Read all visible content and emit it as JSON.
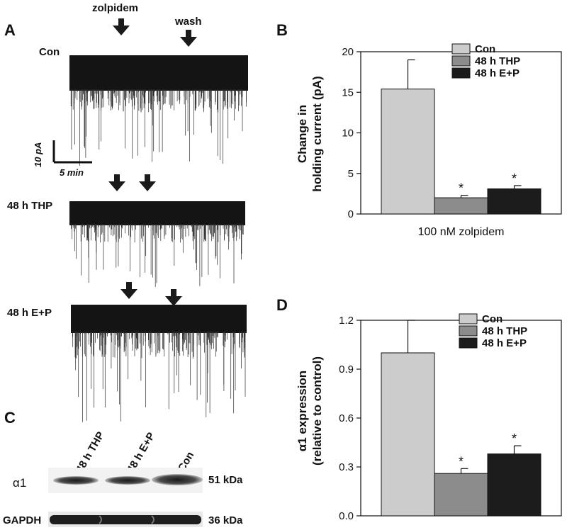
{
  "panels": {
    "A": {
      "label": "A",
      "drug_label": "zolpidem",
      "wash_label": "wash",
      "trace_labels": [
        "Con",
        "48 h THP",
        "48 h E+P"
      ],
      "scale_y": "10 pA",
      "scale_x": "5 min"
    },
    "B": {
      "label": "B"
    },
    "C": {
      "label": "C",
      "lanes": [
        "48 h THP",
        "48 h E+P",
        "Con"
      ],
      "rows": [
        {
          "name": "α1",
          "size": "51 kDa"
        },
        {
          "name": "GAPDH",
          "size": "36 kDa"
        }
      ]
    },
    "D": {
      "label": "D"
    }
  },
  "chart_data": [
    {
      "type": "bar",
      "panel": "B",
      "categories": [
        "100 nM zolpidem"
      ],
      "xlabel": "100 nM zolpidem",
      "ylabel": "Change in holding current (pA)",
      "ylim": [
        0,
        20
      ],
      "yticks": [
        0,
        5,
        10,
        15,
        20
      ],
      "legend_position": "top-right",
      "series": [
        {
          "name": "Con",
          "values": [
            15.4
          ],
          "error": [
            3.6
          ],
          "color": "#cccccc",
          "marker": ""
        },
        {
          "name": "48 h THP",
          "values": [
            2.0
          ],
          "error": [
            0.3
          ],
          "color": "#8c8c8c",
          "marker": "*"
        },
        {
          "name": "48 h E+P",
          "values": [
            3.1
          ],
          "error": [
            0.4
          ],
          "color": "#1c1c1c",
          "marker": "*"
        }
      ]
    },
    {
      "type": "bar",
      "panel": "D",
      "categories": [
        ""
      ],
      "xlabel": "",
      "ylabel": "α1 expression (relative to control)",
      "ylim": [
        0,
        1.2
      ],
      "yticks": [
        "0.0",
        "0.3",
        "0.6",
        "0.9",
        "1.2"
      ],
      "legend_position": "top-right",
      "series": [
        {
          "name": "Con",
          "values": [
            1.0
          ],
          "error": [
            0.2
          ],
          "color": "#cccccc",
          "marker": ""
        },
        {
          "name": "48 h THP",
          "values": [
            0.26
          ],
          "error": [
            0.03
          ],
          "color": "#8c8c8c",
          "marker": "*"
        },
        {
          "name": "48 h E+P",
          "values": [
            0.38
          ],
          "error": [
            0.05
          ],
          "color": "#1c1c1c",
          "marker": "*"
        }
      ]
    }
  ]
}
